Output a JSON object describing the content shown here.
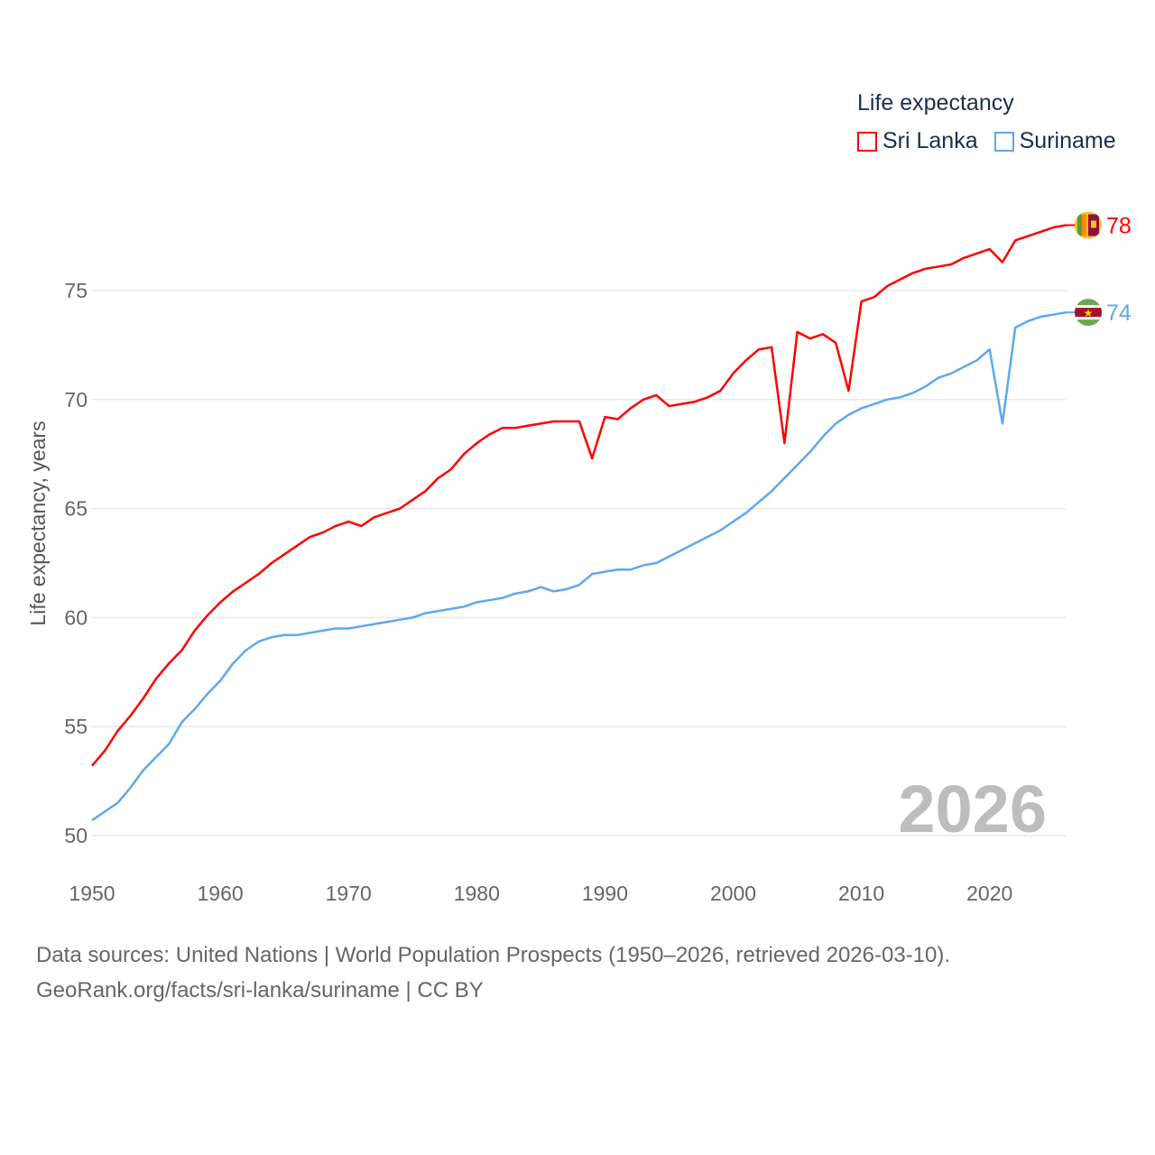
{
  "chart_data": {
    "type": "line",
    "title": "",
    "xlabel": "",
    "ylabel": "Life expectancy, years",
    "xlim": [
      1950,
      2026
    ],
    "ylim": [
      50,
      78
    ],
    "yticks": [
      50,
      55,
      60,
      65,
      70,
      75
    ],
    "xticks": [
      1950,
      1960,
      1970,
      1980,
      1990,
      2000,
      2010,
      2020
    ],
    "grid": true,
    "legend_title": "Life expectancy",
    "legend_position": "top-right",
    "year_watermark": "2026",
    "x": [
      1950,
      1951,
      1952,
      1953,
      1954,
      1955,
      1956,
      1957,
      1958,
      1959,
      1960,
      1961,
      1962,
      1963,
      1964,
      1965,
      1966,
      1967,
      1968,
      1969,
      1970,
      1971,
      1972,
      1973,
      1974,
      1975,
      1976,
      1977,
      1978,
      1979,
      1980,
      1981,
      1982,
      1983,
      1984,
      1985,
      1986,
      1987,
      1988,
      1989,
      1990,
      1991,
      1992,
      1993,
      1994,
      1995,
      1996,
      1997,
      1998,
      1999,
      2000,
      2001,
      2002,
      2003,
      2004,
      2005,
      2006,
      2007,
      2008,
      2009,
      2010,
      2011,
      2012,
      2013,
      2014,
      2015,
      2016,
      2017,
      2018,
      2019,
      2020,
      2021,
      2022,
      2023,
      2024,
      2025,
      2026
    ],
    "series": [
      {
        "name": "Sri Lanka",
        "color": "#ff0000",
        "end_label": "78",
        "values": [
          53.2,
          53.9,
          54.8,
          55.5,
          56.3,
          57.2,
          57.9,
          58.5,
          59.4,
          60.1,
          60.7,
          61.2,
          61.6,
          62.0,
          62.5,
          62.9,
          63.3,
          63.7,
          63.9,
          64.2,
          64.4,
          64.2,
          64.6,
          64.8,
          65.0,
          65.4,
          65.8,
          66.4,
          66.8,
          67.5,
          68.0,
          68.4,
          68.7,
          68.7,
          68.8,
          68.9,
          69.0,
          69.0,
          69.0,
          67.3,
          69.2,
          69.1,
          69.6,
          70.0,
          70.2,
          69.7,
          69.8,
          69.9,
          70.1,
          70.4,
          71.2,
          71.8,
          72.3,
          72.4,
          68.0,
          73.1,
          72.8,
          73.0,
          72.6,
          70.4,
          74.5,
          74.7,
          75.2,
          75.5,
          75.8,
          76.0,
          76.1,
          76.2,
          76.5,
          76.7,
          76.9,
          76.3,
          77.3,
          77.5,
          77.7,
          77.9,
          78.0
        ]
      },
      {
        "name": "Suriname",
        "color": "#5ea8ee",
        "end_label": "74",
        "values": [
          50.7,
          51.1,
          51.5,
          52.2,
          53.0,
          53.6,
          54.2,
          55.2,
          55.8,
          56.5,
          57.1,
          57.9,
          58.5,
          58.9,
          59.1,
          59.2,
          59.2,
          59.3,
          59.4,
          59.5,
          59.5,
          59.6,
          59.7,
          59.8,
          59.9,
          60.0,
          60.2,
          60.3,
          60.4,
          60.5,
          60.7,
          60.8,
          60.9,
          61.1,
          61.2,
          61.4,
          61.2,
          61.3,
          61.5,
          62.0,
          62.1,
          62.2,
          62.2,
          62.4,
          62.5,
          62.8,
          63.1,
          63.4,
          63.7,
          64.0,
          64.4,
          64.8,
          65.3,
          65.8,
          66.4,
          67.0,
          67.6,
          68.3,
          68.9,
          69.3,
          69.6,
          69.8,
          70.0,
          70.1,
          70.3,
          70.6,
          71.0,
          71.2,
          71.5,
          71.8,
          72.3,
          68.9,
          73.3,
          73.6,
          73.8,
          73.9,
          74.0
        ]
      }
    ]
  },
  "legend": {
    "title": "Life expectancy",
    "items": [
      "Sri Lanka",
      "Suriname"
    ]
  },
  "footer": {
    "line1": "Data sources: United Nations | World Population Prospects (1950–2026, retrieved 2026-03-10).",
    "line2": "GeoRank.org/facts/sri-lanka/suriname | CC BY"
  }
}
